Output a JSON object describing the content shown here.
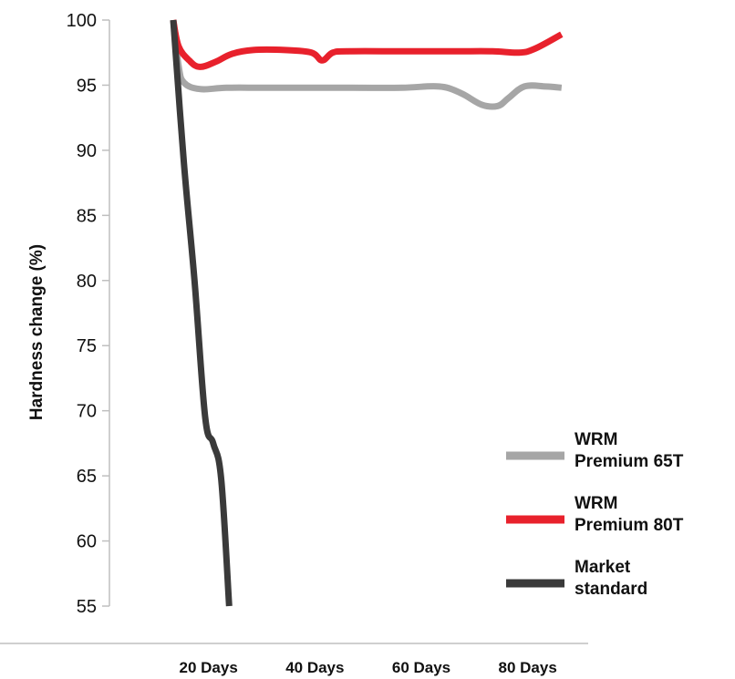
{
  "chart_data": {
    "type": "line",
    "xlabel": "",
    "ylabel": "Hardness change (%)",
    "ylim": [
      55,
      100
    ],
    "xlim": [
      0,
      90
    ],
    "y_ticks": [
      100,
      95,
      90,
      85,
      80,
      75,
      70,
      65,
      60,
      55
    ],
    "x_ticks": [
      {
        "value": 20,
        "label": "20 Days"
      },
      {
        "value": 40,
        "label": "40 Days"
      },
      {
        "value": 60,
        "label": "60 Days"
      },
      {
        "value": 80,
        "label": "80 Days"
      }
    ],
    "grid": false,
    "legend_position": "right",
    "series": [
      {
        "name": "WRM Premium 65T",
        "label_lines": [
          "WRM",
          "Premium 65T"
        ],
        "color": "#a6a6a6",
        "points": [
          [
            12,
            100
          ],
          [
            13,
            96.5
          ],
          [
            14,
            95.2
          ],
          [
            17,
            94.7
          ],
          [
            22,
            94.8
          ],
          [
            30,
            94.8
          ],
          [
            45,
            94.8
          ],
          [
            55,
            94.8
          ],
          [
            62,
            94.9
          ],
          [
            66,
            94.4
          ],
          [
            70,
            93.5
          ],
          [
            73,
            93.4
          ],
          [
            75,
            94.0
          ],
          [
            78,
            94.9
          ],
          [
            82,
            94.9
          ],
          [
            85,
            94.8
          ]
        ]
      },
      {
        "name": "WRM Premium 80T",
        "label_lines": [
          "WRM",
          "Premium 80T"
        ],
        "color": "#e8212c",
        "points": [
          [
            12,
            100
          ],
          [
            13,
            98.0
          ],
          [
            15,
            96.9
          ],
          [
            17,
            96.4
          ],
          [
            20,
            96.8
          ],
          [
            23,
            97.4
          ],
          [
            27,
            97.7
          ],
          [
            33,
            97.7
          ],
          [
            38,
            97.5
          ],
          [
            40,
            96.9
          ],
          [
            42,
            97.5
          ],
          [
            45,
            97.6
          ],
          [
            55,
            97.6
          ],
          [
            65,
            97.6
          ],
          [
            72,
            97.6
          ],
          [
            77,
            97.5
          ],
          [
            80,
            97.8
          ],
          [
            85,
            98.9
          ]
        ]
      },
      {
        "name": "Market standard",
        "label_lines": [
          "Market",
          "standard"
        ],
        "color": "#3a3a3a",
        "points": [
          [
            12,
            100
          ],
          [
            14,
            89
          ],
          [
            16,
            80
          ],
          [
            18,
            69.5
          ],
          [
            19.5,
            67.5
          ],
          [
            21,
            64.8
          ],
          [
            22.5,
            55
          ]
        ]
      }
    ]
  }
}
